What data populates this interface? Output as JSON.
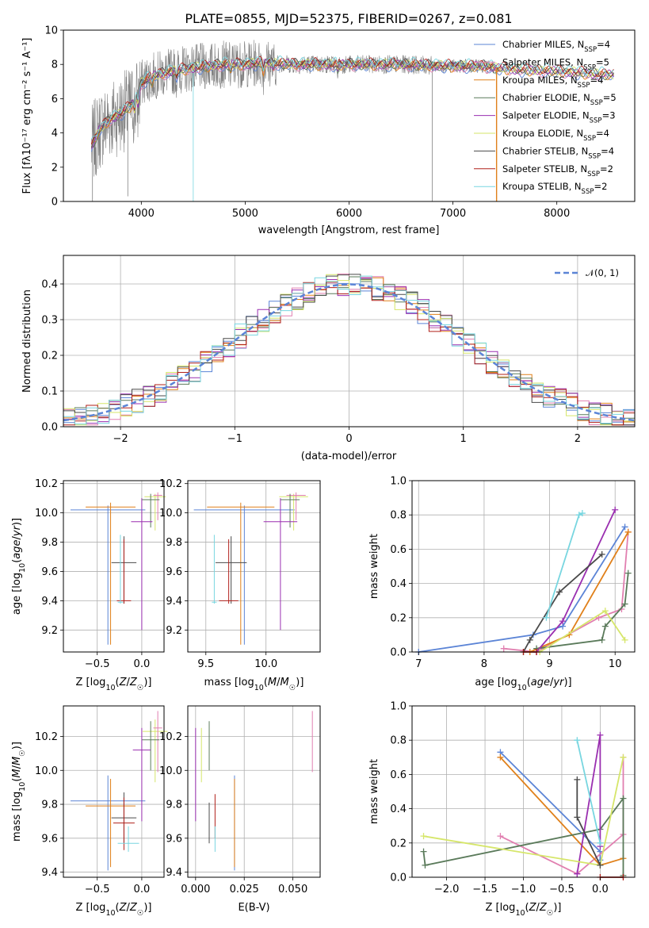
{
  "colors": {
    "Chabrier MILES": "#5b84d6",
    "Salpeter MILES": "#e17fb0",
    "Kroupa MILES": "#e0801a",
    "Chabrier ELODIE": "#5a7a5a",
    "Salpeter ELODIE": "#9a2fb0",
    "Kroupa ELODIE": "#d6e66a",
    "Chabrier STELIB": "#4a4a4a",
    "Salpeter STELIB": "#b0201a",
    "Kroupa STELIB": "#78d6e0",
    "data": "#808080"
  },
  "chart_data": [
    {
      "id": "spectrum",
      "type": "line",
      "title": "PLATE=0855, MJD=52375, FIBERID=0267, z=0.081",
      "xlabel": "wavelength [Angstrom, rest frame]",
      "ylabel": "Flux [fλ10⁻¹⁷ erg cm⁻² s⁻¹ A⁻¹]",
      "xlim": [
        3250,
        8750
      ],
      "ylim": [
        0,
        10
      ],
      "xticks": [
        "4000",
        "5000",
        "6000",
        "7000",
        "8000"
      ],
      "yticks": [
        "0",
        "2",
        "4",
        "6",
        "8",
        "10"
      ],
      "legend_position": "upper right",
      "legend": [
        {
          "model": "Chabrier MILES",
          "base": "Chabrier MILES, N",
          "sub": "SSP",
          "tail": "=4"
        },
        {
          "model": "Salpeter MILES",
          "base": "Salpeter MILES, N",
          "sub": "SSP",
          "tail": "=5"
        },
        {
          "model": "Kroupa MILES",
          "base": "Kroupa MILES, N",
          "sub": "SSP",
          "tail": "=4"
        },
        {
          "model": "Chabrier ELODIE",
          "base": "Chabrier ELODIE, N",
          "sub": "SSP",
          "tail": "=5"
        },
        {
          "model": "Salpeter ELODIE",
          "base": "Salpeter ELODIE, N",
          "sub": "SSP",
          "tail": "=3"
        },
        {
          "model": "Kroupa ELODIE",
          "base": "Kroupa ELODIE, N",
          "sub": "SSP",
          "tail": "=4"
        },
        {
          "model": "Chabrier STELIB",
          "base": "Chabrier STELIB, N",
          "sub": "SSP",
          "tail": "=4"
        },
        {
          "model": "Salpeter STELIB",
          "base": "Salpeter STELIB, N",
          "sub": "SSP",
          "tail": "=2"
        },
        {
          "model": "Kroupa STELIB",
          "base": "Kroupa STELIB, N",
          "sub": "SSP",
          "tail": "=2"
        }
      ],
      "continuum": [
        [
          3520,
          3.2
        ],
        [
          3600,
          4.2
        ],
        [
          3700,
          4.8
        ],
        [
          3800,
          5.1
        ],
        [
          3900,
          5.6
        ],
        [
          3980,
          6.4
        ],
        [
          4000,
          6.9
        ],
        [
          4100,
          7.3
        ],
        [
          4300,
          7.6
        ],
        [
          4500,
          7.8
        ],
        [
          4800,
          8.0
        ],
        [
          5000,
          8.0
        ],
        [
          5200,
          8.1
        ],
        [
          5500,
          8.0
        ],
        [
          6000,
          8.0
        ],
        [
          6500,
          8.0
        ],
        [
          7000,
          7.9
        ],
        [
          7300,
          7.9
        ],
        [
          7400,
          7.8
        ],
        [
          7600,
          7.7
        ],
        [
          8000,
          7.6
        ],
        [
          8500,
          7.4
        ]
      ],
      "data_range": [
        3520,
        7420
      ],
      "model_range": [
        3520,
        8550
      ]
    },
    {
      "id": "residuals",
      "type": "histogram",
      "xlabel": "(data-model)/error",
      "ylabel": "Normed distribution",
      "xlim": [
        -2.5,
        2.5
      ],
      "ylim": [
        0,
        0.48
      ],
      "xticks": [
        "−2",
        "−1",
        "0",
        "1",
        "2"
      ],
      "yticks": [
        "0.0",
        "0.1",
        "0.2",
        "0.3",
        "0.4"
      ],
      "legend_position": "upper right",
      "legend": [
        {
          "label": "𝒩(0, 1)",
          "style": "dashed",
          "color": "#5b84d6"
        }
      ],
      "bin_width": 0.1,
      "reference": "standard normal N(0,1)"
    },
    {
      "id": "age_vs_Z",
      "type": "errorbar",
      "xlabel": "Z [log₁₀(Z/Z☉)]",
      "ylabel": "age  [log₁₀(age/yr)]",
      "xlim": [
        -0.88,
        0.25
      ],
      "ylim": [
        9.05,
        10.22
      ],
      "xticks": [
        "−0.5",
        "0.0"
      ],
      "yticks": [
        "9.2",
        "9.4",
        "9.6",
        "9.8",
        "10.0",
        "10.2"
      ],
      "points": [
        {
          "model": "Chabrier MILES",
          "x": -0.38,
          "xerr": 0.42,
          "y": 10.02,
          "ylo": 9.1,
          "yhi": 10.05
        },
        {
          "model": "Kroupa MILES",
          "x": -0.35,
          "xerr": 0.28,
          "y": 10.04,
          "ylo": 9.1,
          "yhi": 10.07
        },
        {
          "model": "Kroupa ELODIE",
          "x": 0.15,
          "xerr": 0.12,
          "y": 10.11,
          "ylo": 9.88,
          "yhi": 10.13
        },
        {
          "model": "Salpeter MILES",
          "x": 0.18,
          "xerr": 0.05,
          "y": 10.12,
          "ylo": 9.95,
          "yhi": 10.14
        },
        {
          "model": "Chabrier ELODIE",
          "x": 0.1,
          "xerr": 0.1,
          "y": 10.09,
          "ylo": 9.9,
          "yhi": 10.13
        },
        {
          "model": "Salpeter ELODIE",
          "x": 0.0,
          "xerr": 0.12,
          "y": 9.94,
          "ylo": 9.2,
          "yhi": 10.1
        },
        {
          "model": "Chabrier STELIB",
          "x": -0.2,
          "xerr": 0.14,
          "y": 9.66,
          "ylo": 9.38,
          "yhi": 9.84
        },
        {
          "model": "Salpeter STELIB",
          "x": -0.2,
          "xerr": 0.08,
          "y": 9.4,
          "ylo": 9.38,
          "yhi": 9.82
        },
        {
          "model": "Kroupa STELIB",
          "x": -0.24,
          "xerr": 0.03,
          "y": 9.39,
          "ylo": 9.38,
          "yhi": 9.85
        }
      ]
    },
    {
      "id": "age_vs_mass",
      "type": "errorbar",
      "xlabel": "mass [log₁₀(M/M☉)]",
      "ylabel": "",
      "xlim": [
        9.35,
        10.45
      ],
      "ylim": [
        9.05,
        10.22
      ],
      "xticks": [
        "9.5",
        "10.0"
      ],
      "yticks": [
        "9.2",
        "9.4",
        "9.6",
        "9.8",
        "10.0",
        "10.2"
      ],
      "points": [
        {
          "model": "Chabrier MILES",
          "x": 9.82,
          "xerr": 0.42,
          "y": 10.02,
          "ylo": 9.1,
          "yhi": 10.05
        },
        {
          "model": "Kroupa MILES",
          "x": 9.79,
          "xerr": 0.28,
          "y": 10.04,
          "ylo": 9.1,
          "yhi": 10.07
        },
        {
          "model": "Kroupa ELODIE",
          "x": 10.23,
          "xerr": 0.12,
          "y": 10.11,
          "ylo": 9.88,
          "yhi": 10.13
        },
        {
          "model": "Salpeter MILES",
          "x": 10.25,
          "xerr": 0.08,
          "y": 10.12,
          "ylo": 9.95,
          "yhi": 10.14
        },
        {
          "model": "Chabrier ELODIE",
          "x": 10.2,
          "xerr": 0.08,
          "y": 10.09,
          "ylo": 9.9,
          "yhi": 10.13
        },
        {
          "model": "Salpeter ELODIE",
          "x": 10.12,
          "xerr": 0.14,
          "y": 9.94,
          "ylo": 9.2,
          "yhi": 10.1
        },
        {
          "model": "Chabrier STELIB",
          "x": 9.71,
          "xerr": 0.13,
          "y": 9.66,
          "ylo": 9.38,
          "yhi": 9.84
        },
        {
          "model": "Salpeter STELIB",
          "x": 9.69,
          "xerr": 0.08,
          "y": 9.4,
          "ylo": 9.38,
          "yhi": 9.82
        },
        {
          "model": "Kroupa STELIB",
          "x": 9.57,
          "xerr": 0.02,
          "y": 9.39,
          "ylo": 9.38,
          "yhi": 9.85
        }
      ]
    },
    {
      "id": "weight_vs_age",
      "type": "line",
      "xlabel": "age  [log₁₀(age/yr)]",
      "ylabel": "mass weight",
      "xlim": [
        6.9,
        10.3
      ],
      "ylim": [
        0,
        1
      ],
      "xticks": [
        "7",
        "8",
        "9",
        "10"
      ],
      "yticks": [
        "0.0",
        "0.2",
        "0.4",
        "0.6",
        "0.8",
        "1.0"
      ],
      "series": [
        {
          "model": "Chabrier MILES",
          "x": [
            7.0,
            8.75,
            9.2,
            10.15
          ],
          "y": [
            0.0,
            0.1,
            0.15,
            0.73
          ]
        },
        {
          "model": "Salpeter MILES",
          "x": [
            8.3,
            8.8,
            9.75,
            10.1,
            10.2
          ],
          "y": [
            0.02,
            0.0,
            0.2,
            0.25,
            0.7
          ]
        },
        {
          "model": "Kroupa MILES",
          "x": [
            8.7,
            9.3,
            10.2
          ],
          "y": [
            0.0,
            0.1,
            0.7
          ]
        },
        {
          "model": "Chabrier ELODIE",
          "x": [
            8.8,
            9.8,
            9.85,
            10.15,
            10.2
          ],
          "y": [
            0.02,
            0.07,
            0.15,
            0.28,
            0.46
          ]
        },
        {
          "model": "Salpeter ELODIE",
          "x": [
            8.8,
            9.2,
            10.0
          ],
          "y": [
            0.0,
            0.18,
            0.83
          ]
        },
        {
          "model": "Kroupa ELODIE",
          "x": [
            8.85,
            9.85,
            10.15
          ],
          "y": [
            0.0,
            0.24,
            0.07
          ]
        },
        {
          "model": "Chabrier STELIB",
          "x": [
            8.6,
            8.7,
            9.15,
            9.8
          ],
          "y": [
            0.0,
            0.07,
            0.35,
            0.57
          ]
        },
        {
          "model": "Salpeter STELIB",
          "x": [
            8.6,
            8.8
          ],
          "y": [
            0.0,
            0.0
          ]
        },
        {
          "model": "Kroupa STELIB",
          "x": [
            8.95,
            9.45,
            9.5
          ],
          "y": [
            0.2,
            0.8,
            0.81
          ]
        }
      ]
    },
    {
      "id": "mass_vs_Z",
      "type": "errorbar",
      "xlabel": "Z [log₁₀(Z/Z☉)]",
      "ylabel": "mass [log₁₀(M/M☉)]",
      "xlim": [
        -0.88,
        0.25
      ],
      "ylim": [
        9.37,
        10.38
      ],
      "xticks": [
        "−0.5",
        "0.0"
      ],
      "yticks": [
        "9.4",
        "9.6",
        "9.8",
        "10.0",
        "10.2"
      ],
      "points": [
        {
          "model": "Chabrier MILES",
          "x": -0.38,
          "xerr": 0.42,
          "y": 9.82,
          "ylo": 9.41,
          "yhi": 9.97
        },
        {
          "model": "Kroupa MILES",
          "x": -0.35,
          "xerr": 0.28,
          "y": 9.79,
          "ylo": 9.43,
          "yhi": 9.95
        },
        {
          "model": "Kroupa ELODIE",
          "x": 0.15,
          "xerr": 0.14,
          "y": 10.23,
          "ylo": 9.93,
          "yhi": 10.3
        },
        {
          "model": "Salpeter MILES",
          "x": 0.18,
          "xerr": 0.05,
          "y": 10.25,
          "ylo": 9.99,
          "yhi": 10.35
        },
        {
          "model": "Chabrier ELODIE",
          "x": 0.1,
          "xerr": 0.1,
          "y": 10.18,
          "ylo": 10.0,
          "yhi": 10.29
        },
        {
          "model": "Salpeter ELODIE",
          "x": 0.0,
          "xerr": 0.1,
          "y": 10.12,
          "ylo": 9.7,
          "yhi": 10.25
        },
        {
          "model": "Chabrier STELIB",
          "x": -0.2,
          "xerr": 0.14,
          "y": 9.72,
          "ylo": 9.57,
          "yhi": 9.87
        },
        {
          "model": "Salpeter STELIB",
          "x": -0.2,
          "xerr": 0.12,
          "y": 9.69,
          "ylo": 9.53,
          "yhi": 9.84
        },
        {
          "model": "Kroupa STELIB",
          "x": -0.15,
          "xerr": 0.12,
          "y": 9.57,
          "ylo": 9.52,
          "yhi": 9.67
        }
      ]
    },
    {
      "id": "mass_vs_EBV",
      "type": "errorbar",
      "xlabel": "E(B-V)",
      "ylabel": "",
      "xlim": [
        -0.004,
        0.064
      ],
      "ylim": [
        9.37,
        10.38
      ],
      "xticks": [
        "0.000",
        "0.025",
        "0.050"
      ],
      "yticks": [
        "9.4",
        "9.6",
        "9.8",
        "10.0",
        "10.2"
      ],
      "points": [
        {
          "model": "Chabrier MILES",
          "x": 0.02,
          "ylo": 9.41,
          "yhi": 9.97
        },
        {
          "model": "Kroupa MILES",
          "x": 0.02,
          "ylo": 9.43,
          "yhi": 9.95
        },
        {
          "model": "Kroupa ELODIE",
          "x": 0.003,
          "ylo": 9.93,
          "yhi": 10.25
        },
        {
          "model": "Salpeter MILES",
          "x": 0.06,
          "ylo": 9.99,
          "yhi": 10.35
        },
        {
          "model": "Chabrier ELODIE",
          "x": 0.007,
          "ylo": 10.0,
          "yhi": 10.29
        },
        {
          "model": "Salpeter ELODIE",
          "x": 0.0,
          "ylo": 9.7,
          "yhi": 10.25
        },
        {
          "model": "Chabrier STELIB",
          "x": 0.007,
          "ylo": 9.57,
          "yhi": 9.81
        },
        {
          "model": "Salpeter STELIB",
          "x": 0.01,
          "ylo": 9.6,
          "yhi": 9.86
        },
        {
          "model": "Kroupa STELIB",
          "x": 0.01,
          "ylo": 9.52,
          "yhi": 9.67
        }
      ]
    },
    {
      "id": "weight_vs_Z",
      "type": "line",
      "xlabel": "Z [log₁₀(Z/Z☉)]",
      "ylabel": "mass weight",
      "xlim": [
        -2.45,
        0.45
      ],
      "ylim": [
        0,
        1
      ],
      "xticks": [
        "−2.0",
        "−1.5",
        "−1.0",
        "−0.5",
        "0.0"
      ],
      "yticks": [
        "0.0",
        "0.2",
        "0.4",
        "0.6",
        "0.8",
        "1.0"
      ],
      "series": [
        {
          "model": "Chabrier MILES",
          "x": [
            -1.3,
            0.0,
            0.0
          ],
          "y": [
            0.73,
            0.15,
            0.1
          ]
        },
        {
          "model": "Salpeter MILES",
          "x": [
            -1.3,
            -0.3,
            0.3,
            0.3
          ],
          "y": [
            0.24,
            0.02,
            0.25,
            0.7
          ]
        },
        {
          "model": "Kroupa MILES",
          "x": [
            -1.3,
            0.0,
            0.3
          ],
          "y": [
            0.7,
            0.07,
            0.11
          ]
        },
        {
          "model": "Chabrier ELODIE",
          "x": [
            -2.3,
            -2.28,
            0.0,
            0.3,
            0.3
          ],
          "y": [
            0.15,
            0.07,
            0.28,
            0.46,
            0.01
          ]
        },
        {
          "model": "Salpeter ELODIE",
          "x": [
            -0.3,
            0.0,
            0.0
          ],
          "y": [
            0.02,
            0.83,
            0.18
          ]
        },
        {
          "model": "Kroupa ELODIE",
          "x": [
            -2.3,
            0.0,
            0.3
          ],
          "y": [
            0.24,
            0.07,
            0.7
          ]
        },
        {
          "model": "Chabrier STELIB",
          "x": [
            -0.3,
            -0.3,
            0.0
          ],
          "y": [
            0.57,
            0.35,
            0.07
          ]
        },
        {
          "model": "Salpeter STELIB",
          "x": [
            0.0,
            0.3
          ],
          "y": [
            0.0,
            0.0
          ]
        },
        {
          "model": "Kroupa STELIB",
          "x": [
            -0.3,
            0.0
          ],
          "y": [
            0.8,
            0.2
          ]
        }
      ]
    }
  ]
}
